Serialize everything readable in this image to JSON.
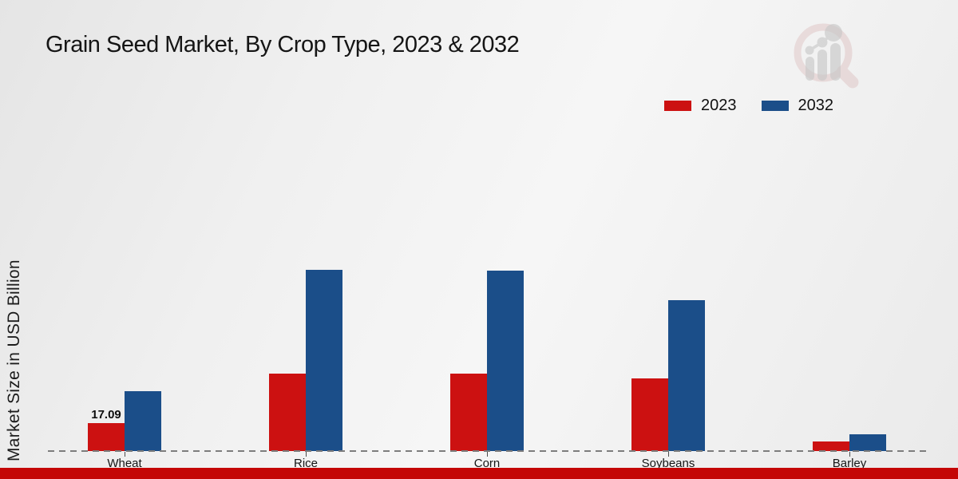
{
  "page": {
    "footer_color": "#c40606",
    "background_accent": "#f0f0f0"
  },
  "logo": {
    "description": "faint watermark: magnifying glass containing rising bar chart with dots",
    "ring_color": "#dcbebe",
    "bar_color": "#c7c7c7"
  },
  "chart_data": {
    "type": "bar",
    "title": "Grain Seed Market, By Crop Type, 2023 & 2032",
    "xlabel": "",
    "ylabel": "Market Size in USD Billion",
    "categories": [
      "Wheat",
      "Rice",
      "Corn",
      "Soybeans",
      "Barley"
    ],
    "series": [
      {
        "name": "2023",
        "color": "#cc1111",
        "values": [
          17.09,
          47.4,
          47.4,
          44.4,
          5.9
        ],
        "data_labels": [
          "17.09",
          "",
          "",
          "",
          ""
        ]
      },
      {
        "name": "2032",
        "color": "#1b4e89",
        "values": [
          36.5,
          110.8,
          110.0,
          92.3,
          10.3
        ],
        "data_labels": [
          "",
          "",
          "",
          "",
          ""
        ]
      }
    ],
    "ylim": [
      0,
      207
    ],
    "grid": false,
    "legend_position": "top-right",
    "baseline_style": "dashed",
    "labeled_values_note": "only Wheat 2023 labeled on chart: 17.09"
  }
}
